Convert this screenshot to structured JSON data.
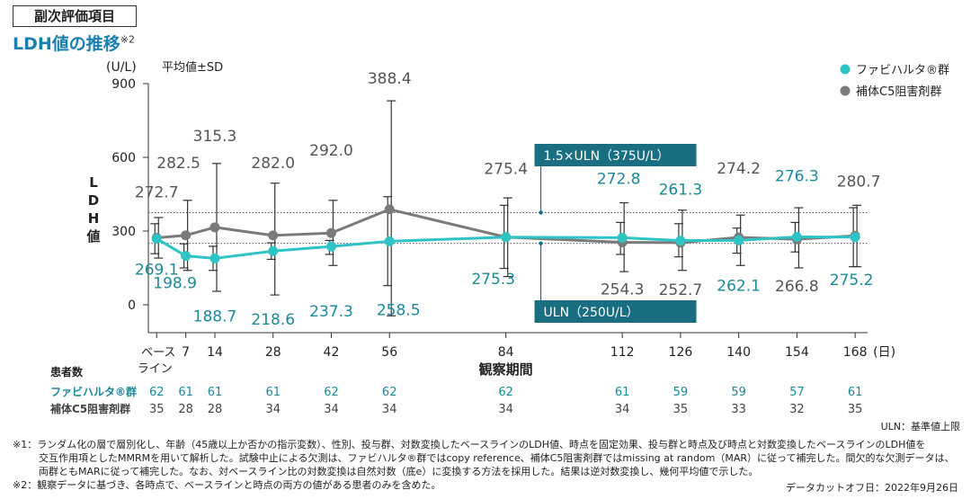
{
  "section_label": "副次評価項目",
  "title": "LDH値の推移",
  "title_note": "※2",
  "chart_data": {
    "type": "line",
    "yaxis_unit": "(U/L)",
    "stat_label": "平均値±SD",
    "ylabel": "LDH値",
    "ylabel_chars": [
      "L",
      "D",
      "H",
      "値"
    ],
    "xlabel": "観察期間",
    "x_unit": "(日)",
    "ylim": [
      -100,
      900
    ],
    "yticks": [
      0,
      300,
      600,
      900
    ],
    "ytick_labels": [
      "0",
      "300",
      "600",
      "900"
    ],
    "x": [
      0,
      7,
      14,
      28,
      42,
      56,
      84,
      112,
      126,
      140,
      154,
      168
    ],
    "xtick_labels": [
      "",
      "7",
      "14",
      "28",
      "42",
      "56",
      "84",
      "112",
      "126",
      "140",
      "154",
      "168"
    ],
    "baseline_label": [
      "ベース",
      "ライン"
    ],
    "series": [
      {
        "name": "ファビハルタ®群",
        "color": "#2ec4c6",
        "label_color": "#1a8a9a",
        "values": [
          269.1,
          198.9,
          188.7,
          218.6,
          237.3,
          258.5,
          275.3,
          272.8,
          261.3,
          262.1,
          276.3,
          275.2
        ],
        "value_labels": [
          "269.1",
          "198.9",
          "188.7",
          "218.6",
          "237.3",
          "258.5",
          "275.3",
          "272.8",
          "261.3",
          "262.1",
          "276.3",
          "275.2"
        ],
        "sd_upper": [
          330,
          248,
          238,
          252,
          262,
          440,
          405,
          335,
          330,
          312,
          335,
          395
        ],
        "sd_lower": [
          208,
          150,
          140,
          185,
          205,
          78,
          148,
          205,
          195,
          210,
          215,
          155
        ]
      },
      {
        "name": "補体C5阻害剤群",
        "color": "#7a7a7a",
        "label_color": "#555555",
        "values": [
          272.7,
          282.5,
          315.3,
          282.0,
          292.0,
          388.4,
          275.4,
          254.3,
          252.7,
          274.2,
          266.8,
          280.7
        ],
        "value_labels": [
          "272.7",
          "282.5",
          "315.3",
          "282.0",
          "292.0",
          "388.4",
          "275.4",
          "254.3",
          "252.7",
          "274.2",
          "266.8",
          "280.7"
        ],
        "sd_upper": [
          355,
          425,
          575,
          495,
          425,
          830,
          435,
          415,
          385,
          365,
          395,
          405
        ],
        "sd_lower": [
          190,
          140,
          55,
          40,
          160,
          -45,
          115,
          135,
          140,
          160,
          150,
          155
        ]
      }
    ],
    "reference_lines": [
      {
        "label": "1.5×ULN（375U/L）",
        "value": 375
      },
      {
        "label": "ULN（250U/L）",
        "value": 250
      }
    ]
  },
  "patients": {
    "header": "患者数",
    "rows": [
      {
        "label": "ファビハルタ®群",
        "counts": [
          "62",
          "61",
          "61",
          "61",
          "62",
          "62",
          "62",
          "61",
          "59",
          "59",
          "57",
          "61"
        ]
      },
      {
        "label": "補体C5阻害剤群",
        "counts": [
          "35",
          "28",
          "28",
          "34",
          "34",
          "34",
          "34",
          "34",
          "35",
          "33",
          "32",
          "35"
        ]
      }
    ]
  },
  "uln_note": "ULN：基準値上限",
  "footnotes": [
    "※1：ランダム化の層で層別化し、年齢（45歳以上か否かの指示変数）、性別、投与群、対数変換したベースラインのLDH値、時点を固定効果、投与群と時点及び時点と対数変換したベースラインのLDH値を",
    "交互作用項としたMMRMを用いて解析した。試験中止による欠測は、ファビハルタ®群ではcopy reference、補体C5阻害剤群ではmissing at random（MAR）に従って補完した。間欠的な欠測データは、",
    "両群ともMARに従って補完した。なお、対ベースライン比の対数変換は自然対数（底e）に変換する方法を採用した。結果は逆対数変換し、幾何平均値で示した。",
    "※2：観察データに基づき、各時点で、ベースラインと時点の両方の値がある患者のみを含めた。"
  ],
  "data_cutoff": "データカットオフ日：2022年9月26日"
}
